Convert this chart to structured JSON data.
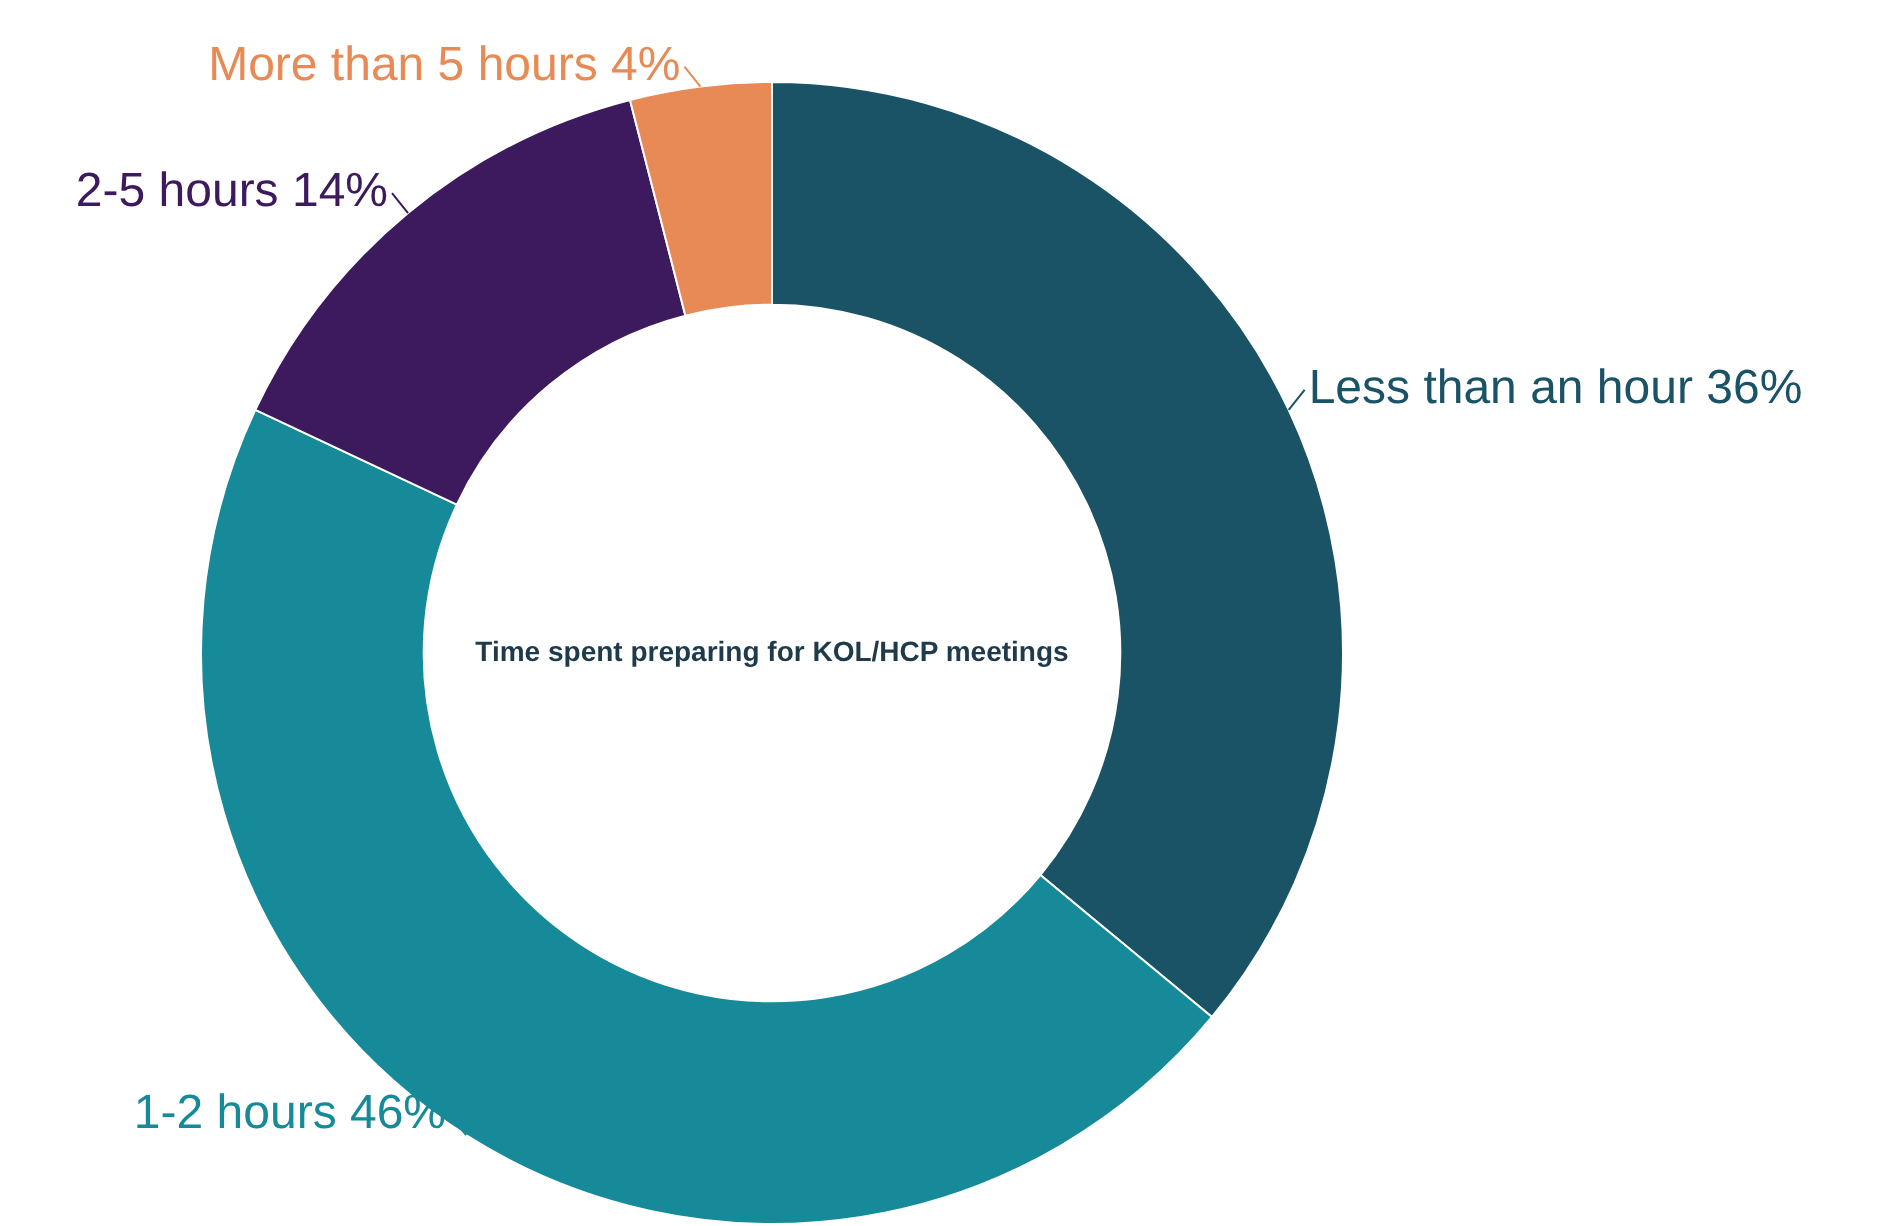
{
  "chart_data": {
    "type": "donut",
    "title": "Time spent preparing for KOL/HCP meetings",
    "categories": [
      "Less than an hour",
      "1-2 hours",
      "2-5 hours",
      "More than 5 hours"
    ],
    "values": [
      36,
      46,
      14,
      4
    ],
    "value_labels": [
      "36%",
      "46%",
      "14%",
      "4%"
    ],
    "colors": [
      "#1a5266",
      "#168a99",
      "#3d1a5e",
      "#e88a55"
    ],
    "legend": false
  }
}
